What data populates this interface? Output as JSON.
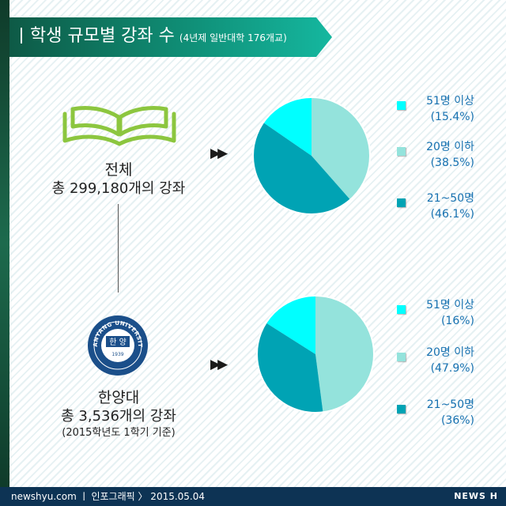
{
  "header": {
    "title": "학생 규모별 강좌 수",
    "subtitle": "(4년제 일반대학 176개교)"
  },
  "overall": {
    "name": "전체",
    "total": "총 299,180개의 강좌"
  },
  "hanyang": {
    "name": "한양대",
    "total": "총 3,536개의 강좌",
    "note": "(2015학년도 1학기 기준)",
    "emblem_text": "한 양",
    "emblem_year": "1939"
  },
  "arrow_glyph": "▶▶",
  "chart_data": [
    {
      "type": "pie",
      "title": "전체",
      "series": [
        {
          "name": "51명 이상",
          "label": "(15.4%)",
          "value": 15.4,
          "color": "#00ffff"
        },
        {
          "name": "20명 이하",
          "label": "(38.5%)",
          "value": 38.5,
          "color": "#94e3dc"
        },
        {
          "name": "21~50명",
          "label": "(46.1%)",
          "value": 46.1,
          "color": "#00a3b4"
        }
      ]
    },
    {
      "type": "pie",
      "title": "한양대",
      "series": [
        {
          "name": "51명 이상",
          "label": "(16%)",
          "value": 16,
          "color": "#00ffff"
        },
        {
          "name": "20명 이하",
          "label": "(47.9%)",
          "value": 47.9,
          "color": "#94e3dc"
        },
        {
          "name": "21~50명",
          "label": "(36%)",
          "value": 36,
          "color": "#00a3b4"
        }
      ]
    }
  ],
  "footer": {
    "text": "newshyu.com  ㅣ 인포그래픽 〉 2015.05.04",
    "logo": "NEWS H"
  }
}
